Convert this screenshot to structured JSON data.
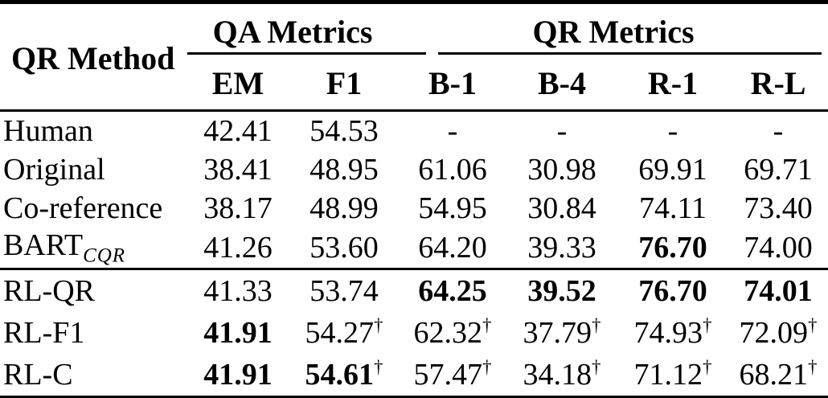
{
  "table": {
    "method_header": "QR Method",
    "groups": [
      {
        "label": "QA Metrics",
        "columns": [
          "EM",
          "F1"
        ]
      },
      {
        "label": "QR Metrics",
        "columns": [
          "B-1",
          "B-4",
          "R-1",
          "R-L"
        ]
      }
    ],
    "columns": [
      "EM",
      "F1",
      "B-1",
      "B-4",
      "R-1",
      "R-L"
    ],
    "dagger_symbol": "†",
    "rows": [
      {
        "label": "Human",
        "subscript": "",
        "section_start": false,
        "cells": [
          {
            "v": "42.41",
            "b": false,
            "d": false
          },
          {
            "v": "54.53",
            "b": false,
            "d": false
          },
          {
            "v": "-",
            "b": false,
            "d": false
          },
          {
            "v": "-",
            "b": false,
            "d": false
          },
          {
            "v": "-",
            "b": false,
            "d": false
          },
          {
            "v": "-",
            "b": false,
            "d": false
          }
        ]
      },
      {
        "label": "Original",
        "subscript": "",
        "section_start": false,
        "cells": [
          {
            "v": "38.41",
            "b": false,
            "d": false
          },
          {
            "v": "48.95",
            "b": false,
            "d": false
          },
          {
            "v": "61.06",
            "b": false,
            "d": false
          },
          {
            "v": "30.98",
            "b": false,
            "d": false
          },
          {
            "v": "69.91",
            "b": false,
            "d": false
          },
          {
            "v": "69.71",
            "b": false,
            "d": false
          }
        ]
      },
      {
        "label": "Co-reference",
        "subscript": "",
        "section_start": false,
        "cells": [
          {
            "v": "38.17",
            "b": false,
            "d": false
          },
          {
            "v": "48.99",
            "b": false,
            "d": false
          },
          {
            "v": "54.95",
            "b": false,
            "d": false
          },
          {
            "v": "30.84",
            "b": false,
            "d": false
          },
          {
            "v": "74.11",
            "b": false,
            "d": false
          },
          {
            "v": "73.40",
            "b": false,
            "d": false
          }
        ]
      },
      {
        "label": "BART",
        "subscript": "CQR",
        "section_start": false,
        "cells": [
          {
            "v": "41.26",
            "b": false,
            "d": false
          },
          {
            "v": "53.60",
            "b": false,
            "d": false
          },
          {
            "v": "64.20",
            "b": false,
            "d": false
          },
          {
            "v": "39.33",
            "b": false,
            "d": false
          },
          {
            "v": "76.70",
            "b": true,
            "d": false
          },
          {
            "v": "74.00",
            "b": false,
            "d": false
          }
        ]
      },
      {
        "label": "RL-QR",
        "subscript": "",
        "section_start": true,
        "cells": [
          {
            "v": "41.33",
            "b": false,
            "d": false
          },
          {
            "v": "53.74",
            "b": false,
            "d": false
          },
          {
            "v": "64.25",
            "b": true,
            "d": false
          },
          {
            "v": "39.52",
            "b": true,
            "d": false
          },
          {
            "v": "76.70",
            "b": true,
            "d": false
          },
          {
            "v": "74.01",
            "b": true,
            "d": false
          }
        ]
      },
      {
        "label": "RL-F1",
        "subscript": "",
        "section_start": false,
        "cells": [
          {
            "v": "41.91",
            "b": true,
            "d": false
          },
          {
            "v": "54.27",
            "b": false,
            "d": true
          },
          {
            "v": "62.32",
            "b": false,
            "d": true
          },
          {
            "v": "37.79",
            "b": false,
            "d": true
          },
          {
            "v": "74.93",
            "b": false,
            "d": true
          },
          {
            "v": "72.09",
            "b": false,
            "d": true
          }
        ]
      },
      {
        "label": "RL-C",
        "subscript": "",
        "section_start": false,
        "cells": [
          {
            "v": "41.91",
            "b": true,
            "d": false
          },
          {
            "v": "54.61",
            "b": true,
            "d": true
          },
          {
            "v": "57.47",
            "b": false,
            "d": true
          },
          {
            "v": "34.18",
            "b": false,
            "d": true
          },
          {
            "v": "71.12",
            "b": false,
            "d": true
          },
          {
            "v": "68.21",
            "b": false,
            "d": true
          }
        ]
      }
    ]
  }
}
